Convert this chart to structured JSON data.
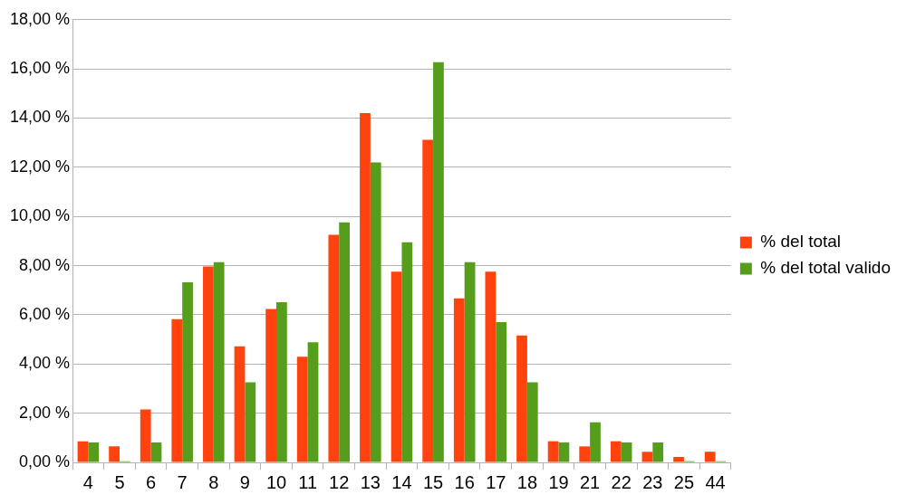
{
  "chart_data": {
    "type": "bar",
    "categories": [
      "4",
      "5",
      "6",
      "7",
      "8",
      "9",
      "10",
      "11",
      "12",
      "13",
      "14",
      "15",
      "16",
      "17",
      "18",
      "19",
      "21",
      "22",
      "23",
      "25",
      "44"
    ],
    "series": [
      {
        "name": "% del total",
        "color": "#ff420e",
        "values": [
          0.86,
          0.65,
          2.15,
          5.82,
          7.97,
          4.72,
          6.24,
          4.3,
          9.25,
          14.2,
          7.75,
          13.12,
          6.67,
          7.75,
          5.16,
          0.86,
          0.65,
          0.86,
          0.43,
          0.22,
          0.43
        ]
      },
      {
        "name": "% del total valido",
        "color": "#579d1c",
        "values": [
          0.81,
          0.05,
          0.81,
          7.32,
          8.14,
          3.26,
          6.51,
          4.88,
          9.76,
          12.2,
          8.95,
          16.27,
          8.14,
          5.7,
          3.26,
          0.81,
          1.63,
          0.81,
          0.81,
          0.05,
          0.05
        ]
      }
    ],
    "ylim": [
      0,
      18
    ],
    "yticks": [
      {
        "value": 0,
        "label": "0,00 %"
      },
      {
        "value": 2,
        "label": "2,00 %"
      },
      {
        "value": 4,
        "label": "4,00 %"
      },
      {
        "value": 6,
        "label": "6,00 %"
      },
      {
        "value": 8,
        "label": "8,00 %"
      },
      {
        "value": 10,
        "label": "10,00 %"
      },
      {
        "value": 12,
        "label": "12,00 %"
      },
      {
        "value": 14,
        "label": "14,00 %"
      },
      {
        "value": 16,
        "label": "16,00 %"
      },
      {
        "value": 18,
        "label": "18,00 %"
      }
    ],
    "grid": "y",
    "legend": "right"
  }
}
